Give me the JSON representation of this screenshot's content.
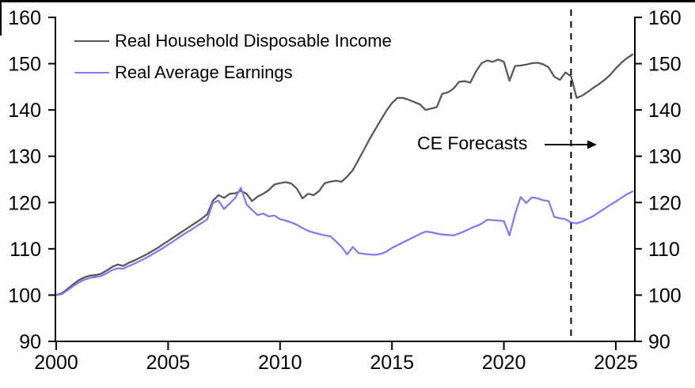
{
  "chart_data": {
    "type": "line",
    "title": "",
    "xlabel": "",
    "ylabel": "",
    "xlim": [
      2000,
      2025.85
    ],
    "ylim": [
      90,
      160
    ],
    "x_ticks": [
      2000,
      2005,
      2010,
      2015,
      2020,
      2025
    ],
    "y_ticks": [
      90,
      100,
      110,
      120,
      130,
      140,
      150,
      160
    ],
    "y_axis_sides": "both",
    "grid": false,
    "legend_position": "top-left",
    "x_start": 2000,
    "x_step": 0.25,
    "forecast_start": 2023,
    "annotation": {
      "text": "CE Forecasts",
      "arrow_direction": "right"
    },
    "axis_color": "#000000",
    "dashed_line_color": "#000000",
    "series": [
      {
        "name": "Real Household Disposable Income",
        "color": "#595959",
        "values": [
          100.0,
          100.4,
          101.3,
          102.3,
          103.2,
          103.8,
          104.2,
          104.3,
          104.6,
          105.3,
          106.1,
          106.6,
          106.3,
          107.0,
          107.5,
          108.1,
          108.7,
          109.4,
          110.1,
          110.9,
          111.7,
          112.5,
          113.3,
          114.1,
          114.9,
          115.7,
          116.5,
          117.5,
          120.4,
          121.6,
          121.0,
          121.9,
          122.0,
          122.5,
          121.9,
          120.3,
          121.3,
          121.9,
          122.7,
          123.9,
          124.2,
          124.4,
          124.1,
          123.0,
          120.9,
          121.9,
          121.6,
          122.5,
          124.2,
          124.5,
          124.7,
          124.5,
          125.6,
          127.0,
          129.2,
          131.4,
          133.7,
          135.8,
          137.8,
          139.8,
          141.5,
          142.6,
          142.6,
          142.2,
          141.7,
          141.2,
          140.0,
          140.3,
          140.6,
          143.5,
          143.8,
          144.6,
          146.1,
          146.2,
          145.9,
          148.3,
          150.1,
          150.7,
          150.4,
          150.9,
          150.4,
          146.3,
          149.5,
          149.6,
          149.8,
          150.1,
          150.2,
          149.9,
          149.2,
          147.2,
          146.5,
          148.1,
          147.3,
          142.6,
          143.1,
          143.9,
          144.8,
          145.6,
          146.5,
          147.6,
          149.0,
          150.2,
          151.2,
          152.0
        ]
      },
      {
        "name": "Real Average Earnings",
        "color": "#7e7ef0",
        "values": [
          100.0,
          100.2,
          101.0,
          101.9,
          102.7,
          103.3,
          103.7,
          103.9,
          104.1,
          104.7,
          105.4,
          105.8,
          105.7,
          106.3,
          106.8,
          107.4,
          108.0,
          108.7,
          109.4,
          110.1,
          110.9,
          111.7,
          112.5,
          113.3,
          114.0,
          114.8,
          115.6,
          116.4,
          119.9,
          120.4,
          118.6,
          119.8,
          121.0,
          123.2,
          119.6,
          118.4,
          117.3,
          117.6,
          117.0,
          117.2,
          116.4,
          116.1,
          115.7,
          115.2,
          114.5,
          113.9,
          113.5,
          113.2,
          112.9,
          112.7,
          111.6,
          110.4,
          108.8,
          110.4,
          109.1,
          108.9,
          108.8,
          108.7,
          108.9,
          109.4,
          110.2,
          110.8,
          111.4,
          112.0,
          112.6,
          113.2,
          113.7,
          113.6,
          113.3,
          113.1,
          113.0,
          112.9,
          113.3,
          113.8,
          114.4,
          114.9,
          115.4,
          116.3,
          116.2,
          116.1,
          116.0,
          112.9,
          117.5,
          121.2,
          119.9,
          121.1,
          120.9,
          120.5,
          120.3,
          116.9,
          116.6,
          116.4,
          115.7,
          115.5,
          115.9,
          116.5,
          117.1,
          117.9,
          118.7,
          119.5,
          120.2,
          121.0,
          121.8,
          122.4
        ]
      }
    ]
  }
}
